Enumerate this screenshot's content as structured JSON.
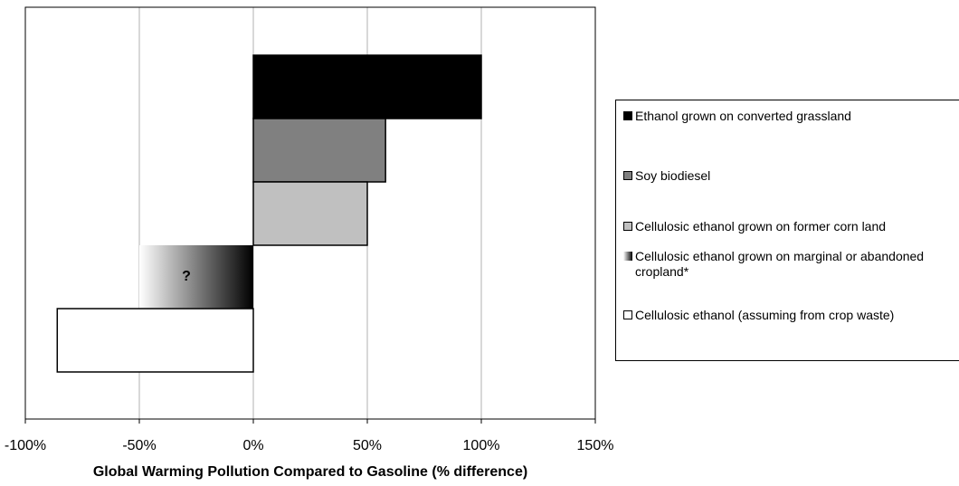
{
  "chart_data": {
    "type": "bar",
    "orientation": "horizontal",
    "xlabel": "Global Warming Pollution Compared to Gasoline (% difference)",
    "categories": [
      "Ethanol grown on converted grassland",
      "Soy biodiesel",
      "Cellulosic ethanol grown on former corn land",
      "Cellulosic ethanol grown on marginal or abandoned cropland*",
      "Cellulosic ethanol (assuming from crop waste)"
    ],
    "values": [
      100,
      58,
      50,
      -50,
      -86
    ],
    "colors": [
      "#000000",
      "#808080",
      "#c0c0c0",
      [
        "#ffffff",
        "#000000"
      ],
      "#ffffff"
    ],
    "annotation": "?",
    "xlim": [
      -100,
      150
    ],
    "xticks": [
      {
        "value": -100,
        "label": "-100%"
      },
      {
        "value": -50,
        "label": "-50%"
      },
      {
        "value": 0,
        "label": "0%"
      },
      {
        "value": 50,
        "label": "50%"
      },
      {
        "value": 100,
        "label": "100%"
      },
      {
        "value": 150,
        "label": "150%"
      }
    ],
    "grid": true,
    "legend": "right"
  }
}
